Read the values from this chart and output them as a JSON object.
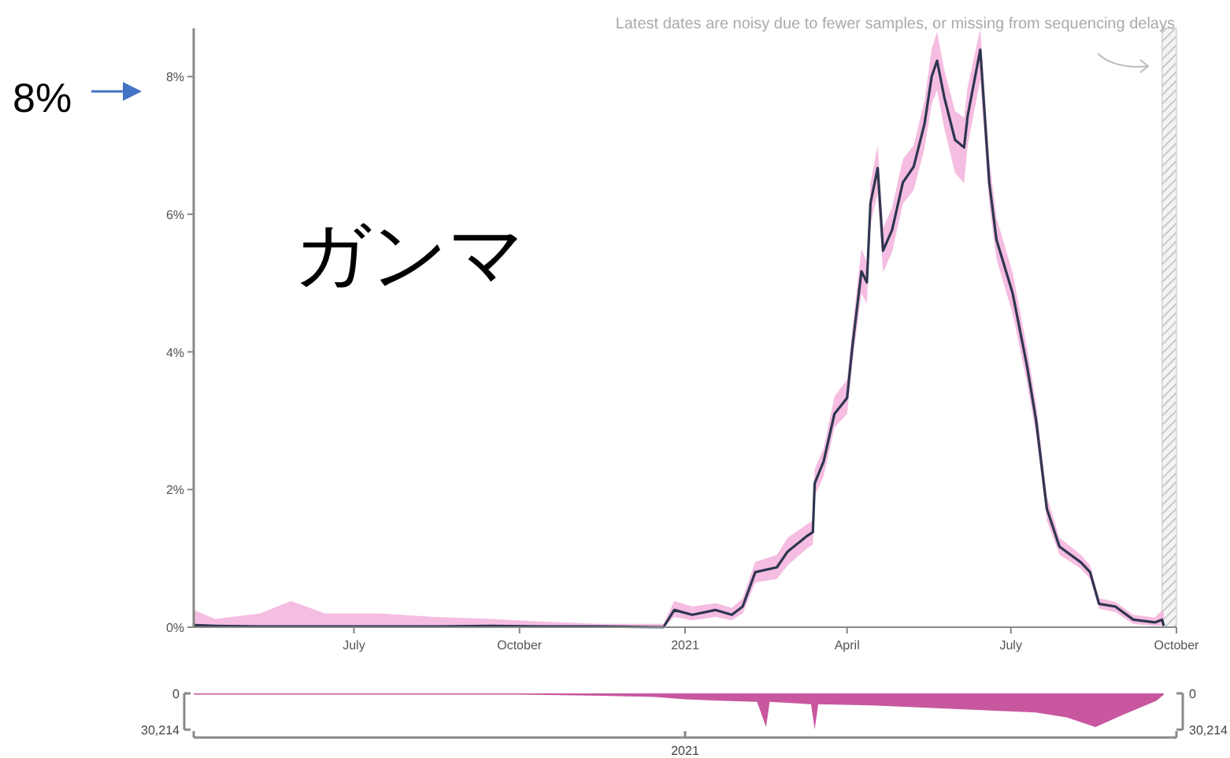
{
  "chart_data": [
    {
      "type": "line",
      "title": "ガンマ",
      "annotations": [
        "Latest dates are noisy due to fewer samples, or missing from sequencing delays",
        "8%"
      ],
      "xlim": [
        "2020-04-03",
        "2021-10-01"
      ],
      "ylim": [
        0,
        8.7
      ],
      "xticks": [
        {
          "value": "2020-07-01",
          "label": "July"
        },
        {
          "value": "2020-10-01",
          "label": "October"
        },
        {
          "value": "2021-01-01",
          "label": "2021"
        },
        {
          "value": "2021-04-01",
          "label": "April"
        },
        {
          "value": "2021-07-01",
          "label": "July"
        },
        {
          "value": "2021-10-01",
          "label": "October"
        }
      ],
      "yticks": [
        {
          "value": 0,
          "label": "0%"
        },
        {
          "value": 2,
          "label": "2%"
        },
        {
          "value": 4,
          "label": "4%"
        },
        {
          "value": 6,
          "label": "6%"
        },
        {
          "value": 8,
          "label": "8%"
        }
      ],
      "bands": [
        {
          "axis": "x",
          "from": "2021-09-23",
          "to": "2021-10-01",
          "color": "#cccccc"
        }
      ],
      "grid": false,
      "series": [
        {
          "color": "#2e3650",
          "x": [
            "2020-04-03",
            "2020-04-15",
            "2020-05-10",
            "2020-05-27",
            "2020-06-15",
            "2020-07-15",
            "2020-08-15",
            "2020-09-15",
            "2020-10-15",
            "2020-11-15",
            "2020-12-20",
            "2020-12-26",
            "2021-01-05",
            "2021-01-18",
            "2021-01-27",
            "2021-02-02",
            "2021-02-09",
            "2021-02-21",
            "2021-02-27",
            "2021-03-10",
            "2021-03-13",
            "2021-03-14",
            "2021-03-19",
            "2021-03-25",
            "2021-04-01",
            "2021-04-04",
            "2021-04-09",
            "2021-04-12",
            "2021-04-14",
            "2021-04-18",
            "2021-04-21",
            "2021-04-26",
            "2021-05-02",
            "2021-05-08",
            "2021-05-14",
            "2021-05-18",
            "2021-05-21",
            "2021-05-25",
            "2021-05-31",
            "2021-06-05",
            "2021-06-07",
            "2021-06-14",
            "2021-06-19",
            "2021-06-23",
            "2021-07-02",
            "2021-07-10",
            "2021-07-15",
            "2021-07-21",
            "2021-07-28",
            "2021-08-09",
            "2021-08-14",
            "2021-08-19",
            "2021-08-28",
            "2021-09-07",
            "2021-09-19",
            "2021-09-23",
            "2021-09-24"
          ],
          "values": [
            0.03,
            0.02,
            0.01,
            0.01,
            0.01,
            0.01,
            0.01,
            0.02,
            0.01,
            0.01,
            0.0,
            0.25,
            0.18,
            0.25,
            0.18,
            0.3,
            0.8,
            0.87,
            1.1,
            1.33,
            1.38,
            2.09,
            2.41,
            3.1,
            3.33,
            4.09,
            5.17,
            5.01,
            6.16,
            6.67,
            5.47,
            5.77,
            6.46,
            6.69,
            7.31,
            8.0,
            8.23,
            7.7,
            7.08,
            6.97,
            7.43,
            8.39,
            6.46,
            5.63,
            4.85,
            3.79,
            3.01,
            1.72,
            1.17,
            0.94,
            0.8,
            0.34,
            0.3,
            0.11,
            0.07,
            0.11,
            0.02
          ],
          "lower": [
            0,
            0,
            0,
            0,
            0,
            0,
            0,
            0,
            0,
            0,
            0,
            0.15,
            0.1,
            0.15,
            0.1,
            0.2,
            0.65,
            0.7,
            0.9,
            1.15,
            1.2,
            1.9,
            2.2,
            2.9,
            3.1,
            3.85,
            4.85,
            4.7,
            5.85,
            6.3,
            5.15,
            5.45,
            6.15,
            6.35,
            6.95,
            7.6,
            7.8,
            7.25,
            6.6,
            6.45,
            7.0,
            7.95,
            6.15,
            5.35,
            4.55,
            3.55,
            2.8,
            1.55,
            1.05,
            0.85,
            0.7,
            0.27,
            0.22,
            0.05,
            0.02,
            0.03,
            0.0
          ],
          "upper": [
            0.25,
            0.12,
            0.2,
            0.38,
            0.2,
            0.2,
            0.15,
            0.12,
            0.08,
            0.05,
            0.05,
            0.38,
            0.3,
            0.35,
            0.28,
            0.42,
            0.95,
            1.05,
            1.3,
            1.5,
            1.55,
            2.3,
            2.6,
            3.35,
            3.6,
            4.35,
            5.5,
            5.3,
            6.45,
            7.0,
            5.8,
            6.1,
            6.8,
            7.0,
            7.65,
            8.4,
            8.65,
            8.1,
            7.5,
            7.4,
            7.85,
            8.7,
            6.8,
            5.95,
            5.15,
            4.05,
            3.25,
            1.9,
            1.3,
            1.05,
            0.9,
            0.42,
            0.37,
            0.18,
            0.14,
            0.25,
            0.2
          ]
        }
      ]
    },
    {
      "type": "area",
      "xlim": [
        "2020-04-03",
        "2021-10-01"
      ],
      "ylim": [
        30214,
        0
      ],
      "y2lim": [
        30214,
        0
      ],
      "annotations": [
        "2021"
      ],
      "yticks": [
        0,
        {
          "value": 30214,
          "label": "30,214"
        }
      ],
      "y2ticks": [
        0,
        {
          "value": 30214,
          "label": "30,214"
        }
      ],
      "series": [
        {
          "color": "#c8579f",
          "x": [
            "2020-04-03",
            "2020-06-01",
            "2020-08-01",
            "2020-10-01",
            "2020-11-15",
            "2020-12-15",
            "2021-01-01",
            "2021-01-20",
            "2021-02-10",
            "2021-02-15",
            "2021-02-17",
            "2021-03-12",
            "2021-03-14",
            "2021-03-16",
            "2021-04-15",
            "2021-05-15",
            "2021-06-15",
            "2021-07-15",
            "2021-08-01",
            "2021-08-17",
            "2021-09-01",
            "2021-09-20",
            "2021-09-24"
          ],
          "values": [
            1000,
            1000,
            1000,
            1000,
            2000,
            3000,
            5000,
            6000,
            7000,
            28000,
            7000,
            9000,
            30000,
            9000,
            10000,
            12000,
            14000,
            16000,
            20000,
            28000,
            18000,
            6000,
            1000
          ]
        }
      ]
    }
  ]
}
